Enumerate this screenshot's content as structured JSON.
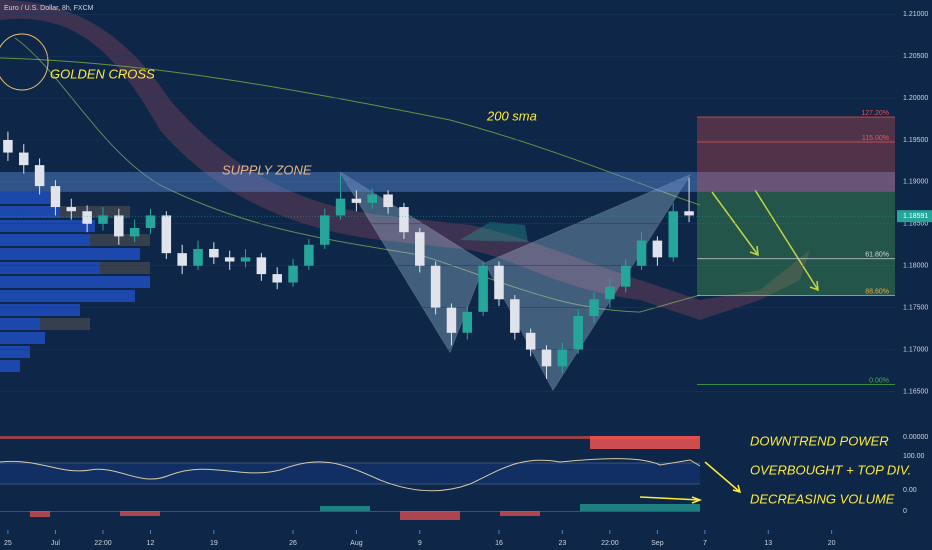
{
  "chart_data": {
    "type": "candlestick",
    "title": "Euro / U.S. Dollar, 8h, FXCM",
    "up_color": "#26a69a",
    "down_color": "#e0e3eb",
    "candles": [
      [
        1.195,
        1.196,
        1.1925,
        1.1935
      ],
      [
        1.1935,
        1.1945,
        1.191,
        1.192
      ],
      [
        1.192,
        1.1928,
        1.1885,
        1.1895
      ],
      [
        1.1895,
        1.1902,
        1.186,
        1.187
      ],
      [
        1.187,
        1.188,
        1.1855,
        1.1865
      ],
      [
        1.1865,
        1.1872,
        1.184,
        1.185
      ],
      [
        1.185,
        1.187,
        1.1842,
        1.186
      ],
      [
        1.186,
        1.1868,
        1.1825,
        1.1835
      ],
      [
        1.1835,
        1.1855,
        1.1828,
        1.1845
      ],
      [
        1.1845,
        1.1868,
        1.1838,
        1.186
      ],
      [
        1.186,
        1.1865,
        1.1808,
        1.1815
      ],
      [
        1.1815,
        1.1825,
        1.179,
        1.18
      ],
      [
        1.18,
        1.183,
        1.1795,
        1.182
      ],
      [
        1.182,
        1.1828,
        1.1802,
        1.181
      ],
      [
        1.181,
        1.1818,
        1.1795,
        1.1805
      ],
      [
        1.1805,
        1.182,
        1.1798,
        1.181
      ],
      [
        1.181,
        1.1815,
        1.1782,
        1.179
      ],
      [
        1.179,
        1.1798,
        1.1772,
        1.178
      ],
      [
        1.178,
        1.1808,
        1.1775,
        1.18
      ],
      [
        1.18,
        1.1832,
        1.1795,
        1.1825
      ],
      [
        1.1825,
        1.1868,
        1.182,
        1.186
      ],
      [
        1.186,
        1.191,
        1.1855,
        1.188
      ],
      [
        1.188,
        1.189,
        1.1865,
        1.1875
      ],
      [
        1.1875,
        1.1892,
        1.1868,
        1.1885
      ],
      [
        1.1885,
        1.189,
        1.1862,
        1.187
      ],
      [
        1.187,
        1.1875,
        1.1832,
        1.184
      ],
      [
        1.184,
        1.1845,
        1.1792,
        1.18
      ],
      [
        1.18,
        1.1805,
        1.1742,
        1.175
      ],
      [
        1.175,
        1.1755,
        1.1705,
        1.172
      ],
      [
        1.172,
        1.1752,
        1.1712,
        1.1745
      ],
      [
        1.1745,
        1.1805,
        1.174,
        1.18
      ],
      [
        1.18,
        1.1805,
        1.1752,
        1.176
      ],
      [
        1.176,
        1.1765,
        1.1712,
        1.172
      ],
      [
        1.172,
        1.1725,
        1.1692,
        1.17
      ],
      [
        1.17,
        1.1705,
        1.1665,
        1.168
      ],
      [
        1.168,
        1.1708,
        1.1672,
        1.17
      ],
      [
        1.17,
        1.1748,
        1.1695,
        1.174
      ],
      [
        1.174,
        1.1768,
        1.1732,
        1.176
      ],
      [
        1.176,
        1.1785,
        1.175,
        1.1775
      ],
      [
        1.1775,
        1.1808,
        1.1768,
        1.18
      ],
      [
        1.18,
        1.184,
        1.1795,
        1.183
      ],
      [
        1.183,
        1.1835,
        1.18,
        1.181
      ],
      [
        1.181,
        1.1875,
        1.1805,
        1.1865
      ],
      [
        1.1865,
        1.1905,
        1.1852,
        1.186
      ]
    ],
    "xlim": [
      -0.5,
      56
    ],
    "xticks": [
      {
        "value": 0,
        "label": "25"
      },
      {
        "value": 3,
        "label": "Jul"
      },
      {
        "value": 6,
        "label": "22:00"
      },
      {
        "value": 9,
        "label": "12"
      },
      {
        "value": 13,
        "label": "19"
      },
      {
        "value": 18,
        "label": "26"
      },
      {
        "value": 22,
        "label": "Aug"
      },
      {
        "value": 26,
        "label": "9"
      },
      {
        "value": 31,
        "label": "16"
      },
      {
        "value": 35,
        "label": "23"
      },
      {
        "value": 38,
        "label": "22:00"
      },
      {
        "value": 41,
        "label": "Sep"
      },
      {
        "value": 44,
        "label": "7"
      },
      {
        "value": 48,
        "label": "13"
      },
      {
        "value": 52,
        "label": "20"
      }
    ],
    "ylim": [
      1.161,
      1.2117
    ],
    "yticks": [
      {
        "value": 1.21,
        "label": "1.21000"
      },
      {
        "value": 1.205,
        "label": "1.20500"
      },
      {
        "value": 1.2,
        "label": "1.20000"
      },
      {
        "value": 1.195,
        "label": "1.19500"
      },
      {
        "value": 1.19,
        "label": "1.19000"
      },
      {
        "value": 1.185,
        "label": "1.18500"
      },
      {
        "value": 1.18,
        "label": "1.18000"
      },
      {
        "value": 1.175,
        "label": "1.17500"
      },
      {
        "value": 1.17,
        "label": "1.17000"
      },
      {
        "value": 1.165,
        "label": "1.16500"
      }
    ],
    "current_price": {
      "value": 1.18591,
      "label": "1.18591"
    },
    "supply_zone": {
      "label": "SUPPLY ZONE",
      "range": [
        1.18881,
        1.19119
      ]
    },
    "fib_levels": [
      {
        "label": "127.20%",
        "value": 1.19774,
        "color": "#ef5350"
      },
      {
        "label": "115.00%",
        "value": 1.19476,
        "color": "#ef5350"
      },
      {
        "label": "61.80%",
        "value": 1.18083,
        "color": "#d1d4dc"
      },
      {
        "label": "88.60%",
        "value": 1.17643,
        "color": "#f0a050"
      },
      {
        "label": "0.00%",
        "value": 1.16583,
        "color": "#4caf50"
      }
    ],
    "annotations": {
      "golden_cross": "GOLDEN CROSS",
      "sma": "200 sma",
      "downtrend": "DOWNTREND POWER",
      "overbought": "OVERBOUGHT + TOP DIV.",
      "volume": "DECREASING VOLUME"
    },
    "pane_labels": {
      "power": "0.00000",
      "osc_top": "100.00",
      "osc_bottom": "0.00",
      "volume": "0"
    }
  }
}
